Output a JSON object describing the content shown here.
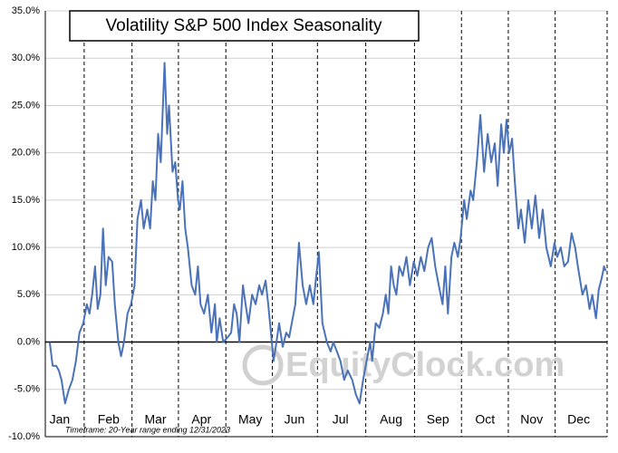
{
  "chart_data": {
    "type": "line",
    "title": "Volatility S&P 500 Index Seasonality",
    "footnote": "Timeframe: 20-Year range ending 12/31/2023",
    "watermark": "EquityClock.com",
    "xlim": [
      0,
      253
    ],
    "xticks": [
      {
        "value": 6.5,
        "label": "Jan"
      },
      {
        "value": 28.5,
        "label": "Feb"
      },
      {
        "value": 49.6,
        "label": "Mar"
      },
      {
        "value": 70.3,
        "label": "Apr"
      },
      {
        "value": 92.3,
        "label": "May"
      },
      {
        "value": 112.2,
        "label": "Jun"
      },
      {
        "value": 132.9,
        "label": "Jul"
      },
      {
        "value": 155.7,
        "label": "Aug"
      },
      {
        "value": 176.8,
        "label": "Sep"
      },
      {
        "value": 198,
        "label": "Oct"
      },
      {
        "value": 219,
        "label": "Nov"
      },
      {
        "value": 240.2,
        "label": "Dec"
      }
    ],
    "ylim": [
      -10,
      35
    ],
    "yticks": [
      {
        "value": -10,
        "label": "-10.0%"
      },
      {
        "value": -5,
        "label": "-5.0%"
      },
      {
        "value": 0,
        "label": "0.0%"
      },
      {
        "value": 5,
        "label": "5.0%"
      },
      {
        "value": 10,
        "label": "10.0%"
      },
      {
        "value": 15,
        "label": "15.0%"
      },
      {
        "value": 20,
        "label": "20.0%"
      },
      {
        "value": 25,
        "label": "25.0%"
      },
      {
        "value": 30,
        "label": "30.0%"
      },
      {
        "value": 35,
        "label": "35.0%"
      }
    ],
    "grid": true,
    "series": [
      {
        "name": "Volatility S&P 500 Index",
        "color": "#4a72b8",
        "x": [
          2.0,
          3.3,
          4.9,
          6.1,
          7.3,
          8.9,
          10.6,
          12.2,
          13.8,
          15.4,
          17.1,
          18.7,
          19.9,
          21.1,
          22.4,
          23.6,
          24.8,
          26.0,
          27.2,
          28.5,
          30.1,
          31.3,
          32.9,
          34.1,
          35.4,
          37.0,
          38.6,
          40.2,
          41.5,
          43.1,
          44.3,
          45.9,
          47.2,
          48.4,
          49.6,
          50.8,
          52.0,
          53.7,
          54.9,
          55.7,
          57.3,
          58.5,
          59.8,
          60.6,
          61.8,
          63.0,
          64.2,
          65.9,
          67.5,
          68.7,
          69.9,
          71.5,
          73.2,
          74.8,
          76.4,
          77.2,
          78.5,
          80.1,
          82.1,
          83.7,
          85.0,
          86.2,
          87.4,
          89.0,
          90.2,
          91.5,
          93.1,
          94.7,
          96.3,
          97.6,
          99.2,
          100.4,
          101.6,
          102.8,
          104.1,
          105.3,
          106.9,
          108.5,
          109.8,
          111.0,
          112.6,
          114.2,
          115.9,
          117.5,
          119.1,
          120.7,
          122.0,
          123.2,
          124.8,
          126.8,
          128.5,
          129.7,
          131.3,
          132.9,
          134.6,
          136.2,
          138.2,
          139.8,
          141.5,
          143.1,
          144.7,
          146.3,
          147.2,
          148.8,
          150.4,
          152.0,
          153.3,
          154.5,
          155.7,
          156.9,
          158.1,
          159.4,
          161.0,
          162.6,
          164.2,
          165.9,
          167.5,
          169.1,
          170.7,
          172.4,
          174.0,
          175.6,
          177.2,
          178.9,
          180.1,
          181.3,
          182.9,
          184.2,
          185.8,
          187.0,
          188.6,
          189.8,
          191.5,
          192.7,
          194.3,
          195.9,
          197.6,
          199.2,
          200.8,
          202.4,
          203.7,
          205.3,
          206.5,
          207.7,
          208.9,
          210.2,
          211.4,
          213.0,
          214.2,
          215.9,
          217.5,
          219.1,
          220.7,
          222.4,
          224.0,
          225.6,
          227.6,
          229.3,
          230.5,
          232.1,
          233.7,
          235.4,
          237.0,
          238.6,
          239.8,
          241.9,
          243.5,
          245.1,
          246.3,
          248.0,
          249.2,
          250.8,
          251.6,
          252.4
        ],
        "values": [
          0,
          -2.5,
          -2.5,
          -3,
          -4,
          -6.5,
          -5,
          -4,
          -2,
          1,
          2,
          4,
          3,
          5,
          8,
          3.5,
          5,
          12,
          6,
          9,
          8.5,
          4,
          0,
          -1.5,
          0,
          3,
          4,
          6,
          13,
          15,
          12,
          14,
          12,
          17,
          15,
          22,
          19,
          29.5,
          22,
          25,
          18,
          19,
          15,
          14,
          17,
          12,
          10,
          6,
          5,
          8,
          4,
          3,
          5,
          1,
          4,
          0,
          2.5,
          0,
          0.5,
          1,
          4,
          3,
          0,
          6,
          4,
          2,
          5,
          4,
          6,
          5,
          6.5,
          4,
          1,
          -2,
          0,
          2,
          -0.5,
          1,
          0.5,
          2,
          4,
          10.5,
          6,
          4,
          6,
          4,
          7,
          9.5,
          2,
          0,
          -1,
          0,
          -1,
          -2,
          -4,
          -3,
          -4,
          -5.5,
          -6.5,
          -4,
          -2,
          0,
          -2,
          2,
          1.5,
          3,
          5,
          3,
          8,
          6,
          5,
          8,
          7,
          9,
          6,
          8.5,
          7,
          9,
          7.5,
          10,
          11,
          8,
          6,
          4,
          8,
          3,
          9,
          10.5,
          9,
          11,
          15,
          13,
          16,
          15,
          19,
          24,
          18,
          22,
          19,
          21,
          16.5,
          23,
          20,
          23.5,
          20,
          21.5,
          17,
          12,
          14,
          10.5,
          15,
          12,
          15.5,
          11,
          14,
          10,
          8,
          10.5,
          9,
          10,
          8,
          8.5,
          11.5,
          10,
          8,
          5,
          6,
          3.5,
          5,
          2.5,
          5.5,
          7,
          8,
          7.5
        ]
      }
    ]
  }
}
